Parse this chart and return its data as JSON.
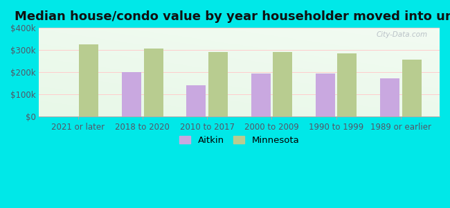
{
  "title": "Median house/condo value by year householder moved into unit",
  "categories": [
    "2021 or later",
    "2018 to 2020",
    "2010 to 2017",
    "2000 to 2009",
    "1990 to 1999",
    "1989 or earlier"
  ],
  "aitkin_values": [
    0,
    201000,
    140000,
    194000,
    193000,
    170000
  ],
  "minnesota_values": [
    325000,
    305000,
    290000,
    290000,
    285000,
    255000
  ],
  "aitkin_color": "#c9a8e0",
  "minnesota_color": "#b8cc90",
  "background_color": "#00e8e8",
  "plot_bg_color": "#e8f8e8",
  "ylim": [
    0,
    400000
  ],
  "yticks": [
    0,
    100000,
    200000,
    300000,
    400000
  ],
  "ytick_labels": [
    "$0",
    "$100k",
    "$200k",
    "$300k",
    "$400k"
  ],
  "legend_labels": [
    "Aitkin",
    "Minnesota"
  ],
  "watermark": "City-Data.com",
  "title_fontsize": 13,
  "tick_fontsize": 8.5,
  "legend_fontsize": 9.5
}
